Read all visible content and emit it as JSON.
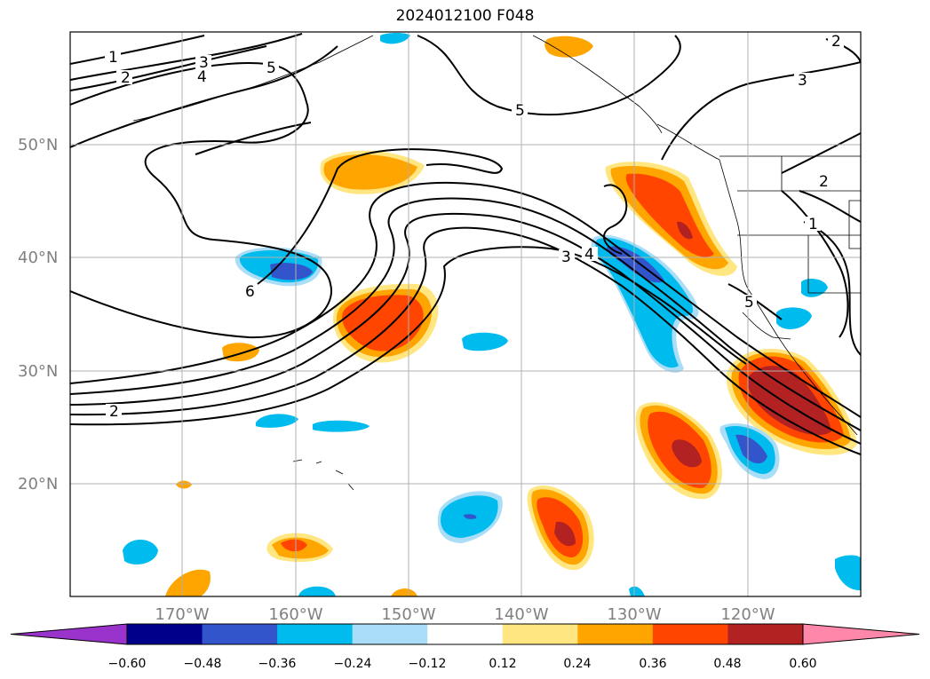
{
  "title": "2024012100 F048",
  "lat_labels": [
    "50°N",
    "40°N",
    "30°N",
    "20°N"
  ],
  "lon_labels": [
    "170°W",
    "160°W",
    "150°W",
    "140°W",
    "130°W",
    "120°W"
  ],
  "contour_labels": [
    "1",
    "2",
    "3",
    "4",
    "5",
    "6",
    "5",
    "3",
    "4",
    "3",
    "2",
    "2",
    "1",
    "5",
    "2"
  ],
  "colorbar": {
    "ticks": [
      "−0.60",
      "−0.48",
      "−0.36",
      "−0.24",
      "−0.12",
      "0.12",
      "0.24",
      "0.36",
      "0.48",
      "0.60"
    ],
    "colors": [
      "#9933cc",
      "#00008b",
      "#3355cc",
      "#00bbee",
      "#aaddf7",
      "#ffffff",
      "#ffe680",
      "#ffa500",
      "#ff4500",
      "#b22222",
      "#ff88aa"
    ]
  },
  "colors": {
    "grid": "#b0b0b0",
    "axis_label": "#808080",
    "contour": "#000000"
  }
}
